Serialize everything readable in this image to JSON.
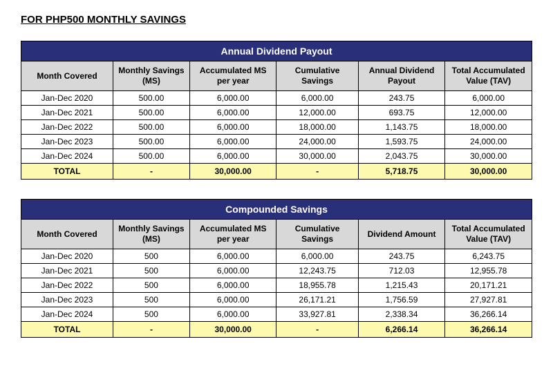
{
  "page_title": "FOR PHP500 MONTHLY SAVINGS",
  "tables": [
    {
      "title": "Annual Dividend Payout",
      "columns": [
        "Month Covered",
        "Monthly Savings (MS)",
        "Accumulated MS per year",
        "Cumulative Savings",
        "Annual Dividend Payout",
        "Total Accumulated Value (TAV)"
      ],
      "rows": [
        [
          "Jan-Dec 2020",
          "500.00",
          "6,000.00",
          "6,000.00",
          "243.75",
          "6,000.00"
        ],
        [
          "Jan-Dec 2021",
          "500.00",
          "6,000.00",
          "12,000.00",
          "693.75",
          "12,000.00"
        ],
        [
          "Jan-Dec 2022",
          "500.00",
          "6,000.00",
          "18,000.00",
          "1,143.75",
          "18,000.00"
        ],
        [
          "Jan-Dec 2023",
          "500.00",
          "6,000.00",
          "24,000.00",
          "1,593.75",
          "24,000.00"
        ],
        [
          "Jan-Dec 2024",
          "500.00",
          "6,000.00",
          "30,000.00",
          "2,043.75",
          "30,000.00"
        ]
      ],
      "total": [
        "TOTAL",
        "-",
        "30,000.00",
        "-",
        "5,718.75",
        "30,000.00"
      ]
    },
    {
      "title": "Compounded Savings",
      "columns": [
        "Month Covered",
        "Monthly Savings (MS)",
        "Accumulated MS per year",
        "Cumulative Savings",
        "Dividend Amount",
        "Total Accumulated Value (TAV)"
      ],
      "rows": [
        [
          "Jan-Dec 2020",
          "500",
          "6,000.00",
          "6,000.00",
          "243.75",
          "6,243.75"
        ],
        [
          "Jan-Dec 2021",
          "500",
          "6,000.00",
          "12,243.75",
          "712.03",
          "12,955.78"
        ],
        [
          "Jan-Dec 2022",
          "500",
          "6,000.00",
          "18,955.78",
          "1,215.43",
          "20,171.21"
        ],
        [
          "Jan-Dec 2023",
          "500",
          "6,000.00",
          "26,171.21",
          "1,756.59",
          "27,927.81"
        ],
        [
          "Jan-Dec 2024",
          "500",
          "6,000.00",
          "33,927.81",
          "2,338.34",
          "36,266.14"
        ]
      ],
      "total": [
        "TOTAL",
        "-",
        "30,000.00",
        "-",
        "6,266.14",
        "36,266.14"
      ]
    }
  ],
  "style": {
    "band_bg": "#2a2f7a",
    "band_fg": "#ffffff",
    "header_bg": "#d8d8d8",
    "total_bg": "#fdfab0",
    "border": "#000000",
    "col_widths_pct": [
      18,
      15,
      17,
      16,
      17,
      17
    ]
  }
}
